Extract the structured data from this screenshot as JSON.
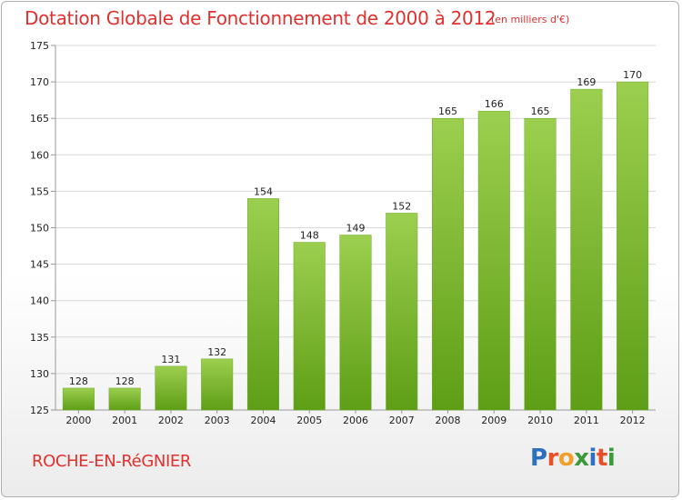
{
  "header": {
    "title": "Dotation Globale de Fonctionnement de 2000 à 2012",
    "subtitle": "(en milliers d'€)"
  },
  "footer": {
    "commune": "ROCHE-EN-RéGNIER",
    "logo_letters": [
      "P",
      "r",
      "o",
      "x",
      "i",
      "t",
      "i"
    ],
    "logo_colors": [
      "#2d6fc0",
      "#e8502a",
      "#f0a02a",
      "#3a9a3a",
      "#2d6fc0",
      "#e8502a",
      "#3a9a3a"
    ]
  },
  "chart_data": {
    "type": "bar",
    "title": "Dotation Globale de Fonctionnement de 2000 à 2012",
    "subtitle": "(en milliers d'€)",
    "categories": [
      "2000",
      "2001",
      "2002",
      "2003",
      "2004",
      "2005",
      "2006",
      "2007",
      "2008",
      "2009",
      "2010",
      "2011",
      "2012"
    ],
    "values": [
      128,
      128,
      131,
      132,
      154,
      148,
      149,
      152,
      165,
      166,
      165,
      169,
      170
    ],
    "data_labels": [
      "128",
      "128",
      "131",
      "132",
      "154",
      "148",
      "149",
      "152",
      "165",
      "166",
      "165",
      "169",
      "170"
    ],
    "ylim": [
      125,
      175
    ],
    "y_ticks": [
      125,
      130,
      135,
      140,
      145,
      150,
      155,
      160,
      165,
      170,
      175
    ],
    "y_tick_labels": [
      "125",
      "130",
      "135",
      "140",
      "145",
      "150",
      "155",
      "160",
      "165",
      "170",
      "175"
    ],
    "grid": true,
    "colors": {
      "bar_top": "#9ccf4f",
      "bar_bottom": "#5e9e16",
      "grid": "#d8d8d8",
      "axis": "#999999",
      "title": "#e0312e"
    }
  }
}
